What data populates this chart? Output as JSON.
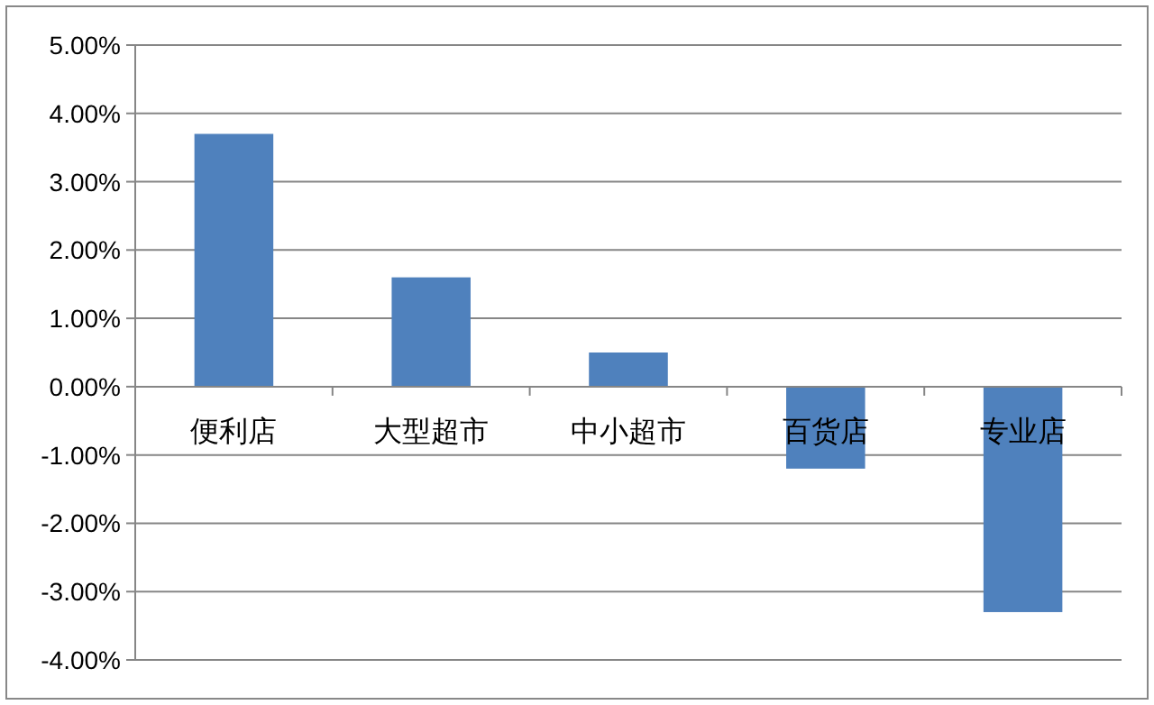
{
  "chart_data": {
    "type": "bar",
    "categories": [
      "便利店",
      "大型超市",
      "中小超市",
      "百货店",
      "专业店"
    ],
    "values": [
      3.7,
      1.6,
      0.5,
      -1.2,
      -3.3
    ],
    "color": "#4f81bd",
    "ylim": [
      -4,
      5
    ],
    "yticks": [
      {
        "value": -4,
        "label": "-4.00%"
      },
      {
        "value": -3,
        "label": "-3.00%"
      },
      {
        "value": -2,
        "label": "-2.00%"
      },
      {
        "value": -1,
        "label": "-1.00%"
      },
      {
        "value": 0,
        "label": "0.00%"
      },
      {
        "value": 1,
        "label": "1.00%"
      },
      {
        "value": 2,
        "label": "2.00%"
      },
      {
        "value": 3,
        "label": "3.00%"
      },
      {
        "value": 4,
        "label": "4.00%"
      },
      {
        "value": 5,
        "label": "5.00%"
      }
    ],
    "grid": "y"
  }
}
